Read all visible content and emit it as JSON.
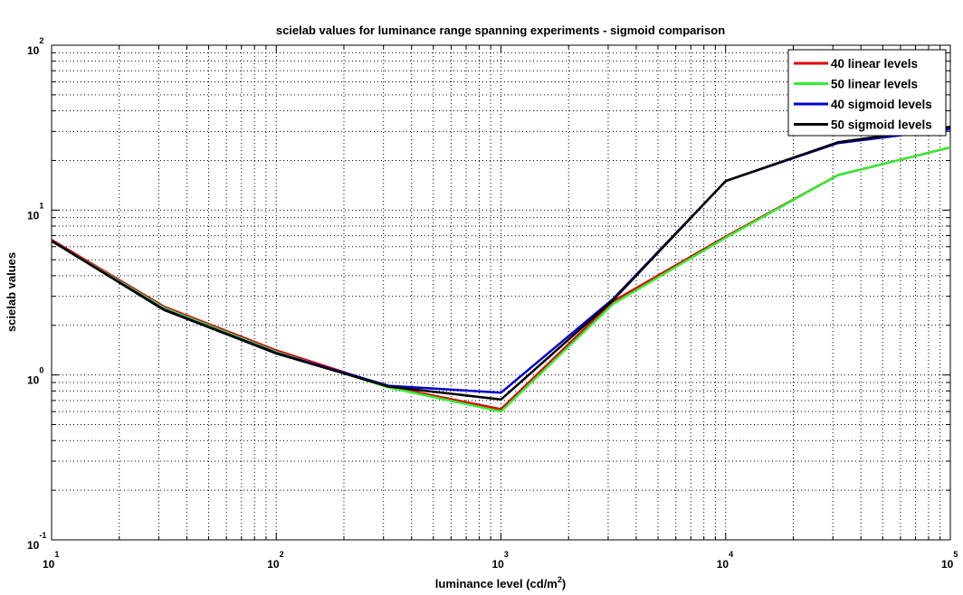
{
  "chart_data": {
    "type": "line",
    "title": "scielab values for luminance range spanning experiments - sigmoid comparison",
    "xlabel": "luminance level (cd/m^2)",
    "xlabel_main": "luminance level (cd/m",
    "xlabel_sup": "2",
    "xlabel_end": ")",
    "ylabel": "scielab values",
    "xscale": "log",
    "yscale": "log",
    "xlim": [
      10,
      100000
    ],
    "ylim": [
      0.1,
      100
    ],
    "grid": true,
    "legend_position": "top-right",
    "x_ticks": [
      {
        "base": "10",
        "exp": "1"
      },
      {
        "base": "10",
        "exp": "2"
      },
      {
        "base": "10",
        "exp": "3"
      },
      {
        "base": "10",
        "exp": "4"
      },
      {
        "base": "10",
        "exp": "5"
      }
    ],
    "y_ticks": [
      {
        "base": "10",
        "exp": "-1"
      },
      {
        "base": "10",
        "exp": "0"
      },
      {
        "base": "10",
        "exp": "1"
      },
      {
        "base": "10",
        "exp": "2"
      }
    ],
    "x": [
      10,
      31.6,
      100,
      316,
      1000,
      3162,
      10000,
      31623,
      100000
    ],
    "series": [
      {
        "name": "40 linear levels",
        "color": "#e00000",
        "values": [
          6.6,
          2.6,
          1.41,
          0.85,
          0.62,
          2.8,
          6.9,
          16.3,
          24
        ]
      },
      {
        "name": "50 linear levels",
        "color": "#33ee33",
        "values": [
          6.5,
          2.55,
          1.38,
          0.84,
          0.6,
          2.7,
          6.8,
          16.3,
          24
        ]
      },
      {
        "name": "40 sigmoid levels",
        "color": "#0000cc",
        "values": [
          6.5,
          2.5,
          1.36,
          0.86,
          0.78,
          2.9,
          15,
          25.5,
          31
        ]
      },
      {
        "name": "50 sigmoid levels",
        "color": "#000000",
        "values": [
          6.5,
          2.48,
          1.35,
          0.85,
          0.71,
          2.85,
          15,
          25.8,
          32
        ]
      }
    ]
  }
}
